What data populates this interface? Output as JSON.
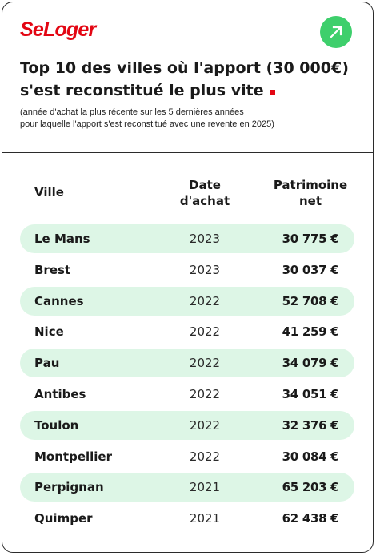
{
  "brand": {
    "logo_text": "SeLoger",
    "logo_color": "#e30613",
    "badge_icon": "arrow-up-right-icon",
    "badge_color": "#3ecf6c"
  },
  "header": {
    "title_line1": "Top 10 des villes où l'apport (30 000€)",
    "title_line2": "s'est reconstitué le plus vite",
    "subtitle_line1": "(année d'achat la plus récente sur les 5 dernières années",
    "subtitle_line2": "pour laquelle l'apport s'est reconstitué avec une revente en 2025)"
  },
  "table": {
    "columns": {
      "ville": "Ville",
      "date_line1": "Date",
      "date_line2": "d'achat",
      "patrimoine_line1": "Patrimoine",
      "patrimoine_line2": "net"
    },
    "rows": [
      {
        "city": "Le Mans",
        "year": "2023",
        "value": "30 775 €"
      },
      {
        "city": "Brest",
        "year": "2023",
        "value": "30 037 €"
      },
      {
        "city": "Cannes",
        "year": "2022",
        "value": "52 708 €"
      },
      {
        "city": "Nice",
        "year": "2022",
        "value": "41 259 €"
      },
      {
        "city": "Pau",
        "year": "2022",
        "value": "34 079 €"
      },
      {
        "city": "Antibes",
        "year": "2022",
        "value": "34 051 €"
      },
      {
        "city": "Toulon",
        "year": "2022",
        "value": "32 376 €"
      },
      {
        "city": "Montpellier",
        "year": "2022",
        "value": "30 084 €"
      },
      {
        "city": "Perpignan",
        "year": "2021",
        "value": "65 203 €"
      },
      {
        "city": "Quimper",
        "year": "2021",
        "value": "62 438 €"
      }
    ],
    "row_highlight_color": "#ddf6e6"
  }
}
